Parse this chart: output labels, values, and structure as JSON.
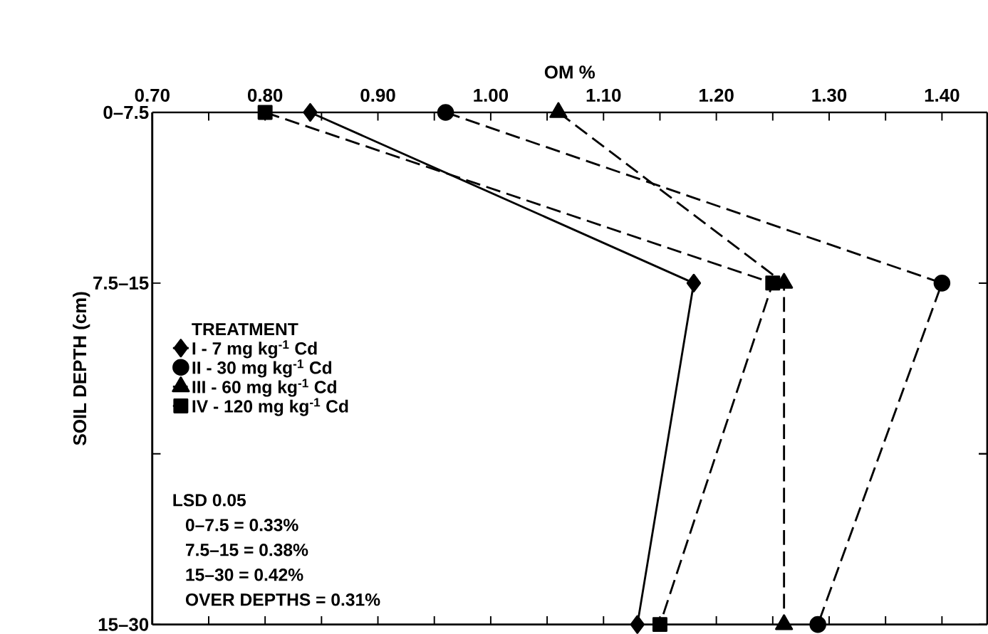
{
  "chart_data": {
    "type": "line",
    "orientation": "horizontal",
    "xlabel": "OM %",
    "ylabel": "SOIL DEPTH (cm)",
    "categories": [
      "0–7.5",
      "7.5–15",
      null,
      "15–30"
    ],
    "xlim": [
      0.7,
      1.44
    ],
    "xticks": [
      {
        "value": 0.7,
        "label": "0.70"
      },
      {
        "value": 0.75,
        "label": null
      },
      {
        "value": 0.8,
        "label": "0.80"
      },
      {
        "value": 0.85,
        "label": null
      },
      {
        "value": 0.9,
        "label": "0.90"
      },
      {
        "value": 0.95,
        "label": null
      },
      {
        "value": 1.0,
        "label": "1.00"
      },
      {
        "value": 1.05,
        "label": null
      },
      {
        "value": 1.1,
        "label": "1.10"
      },
      {
        "value": 1.15,
        "label": null
      },
      {
        "value": 1.2,
        "label": "1.20"
      },
      {
        "value": 1.25,
        "label": null
      },
      {
        "value": 1.3,
        "label": "1.30"
      },
      {
        "value": 1.35,
        "label": null
      },
      {
        "value": 1.4,
        "label": "1.40"
      }
    ],
    "legend_title": "TREATMENT",
    "legend": "left",
    "series": [
      {
        "name": "I - 7 mg kg$^{-1}$ Cd",
        "color": "#000000",
        "marker": "diamond",
        "line_style": "solid",
        "values": [
          0.84,
          1.18,
          null,
          1.13
        ]
      },
      {
        "name": "II - 30 mg kg$^{-1}$ Cd",
        "color": "#000000",
        "marker": "circle",
        "line_style": "dashed",
        "values": [
          0.96,
          1.4,
          null,
          1.29
        ]
      },
      {
        "name": "III - 60 mg kg$^{-1}$ Cd",
        "color": "#000000",
        "marker": "triangle",
        "line_style": "dashed",
        "values": [
          1.06,
          1.26,
          null,
          1.26
        ]
      },
      {
        "name": "IV - 120 mg kg$^{-1}$ Cd",
        "color": "#000000",
        "marker": "square",
        "line_style": "dashed",
        "values": [
          0.8,
          1.25,
          null,
          1.15
        ]
      }
    ],
    "annotations": [
      "LSD 0.05",
      "0–7.5 = 0.33%",
      "7.5–15 = 0.38%",
      "15–30 = 0.42%",
      "OVER DEPTHS = 0.31%"
    ]
  }
}
